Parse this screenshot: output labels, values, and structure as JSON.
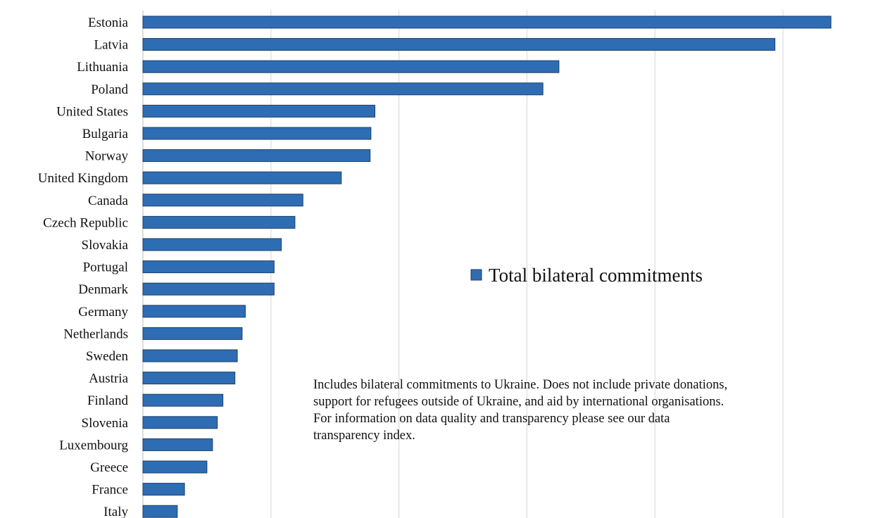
{
  "chart_data": {
    "type": "bar",
    "orientation": "horizontal",
    "categories": [
      "Estonia",
      "Latvia",
      "Lithuania",
      "Poland",
      "United States",
      "Bulgaria",
      "Norway",
      "United Kingdom",
      "Canada",
      "Czech Republic",
      "Slovakia",
      "Portugal",
      "Denmark",
      "Germany",
      "Netherlands",
      "Sweden",
      "Austria",
      "Finland",
      "Slovenia",
      "Luxembourg",
      "Greece",
      "France",
      "Italy"
    ],
    "series": [
      {
        "name": "Total bilateral commitments",
        "values": [
          0.86,
          0.79,
          0.52,
          0.5,
          0.29,
          0.285,
          0.284,
          0.248,
          0.2,
          0.19,
          0.173,
          0.164,
          0.164,
          0.128,
          0.124,
          0.118,
          0.115,
          0.1,
          0.093,
          0.087,
          0.08,
          0.052,
          0.043
        ],
        "color": "#2e6db4"
      }
    ],
    "xlim": [
      0,
      0.88
    ],
    "gridlines": [
      0.16,
      0.32,
      0.48,
      0.64,
      0.8
    ],
    "grid": true,
    "legend_position": "right-middle",
    "xlabel": "",
    "ylabel": ""
  },
  "note": {
    "lines": [
      "Includes bilateral commitments to Ukraine. Does not include private donations,",
      "support for refugees outside of Ukraine, and aid by international organisations.",
      "For information on data quality and transparency please see our data",
      "transparency index."
    ]
  }
}
